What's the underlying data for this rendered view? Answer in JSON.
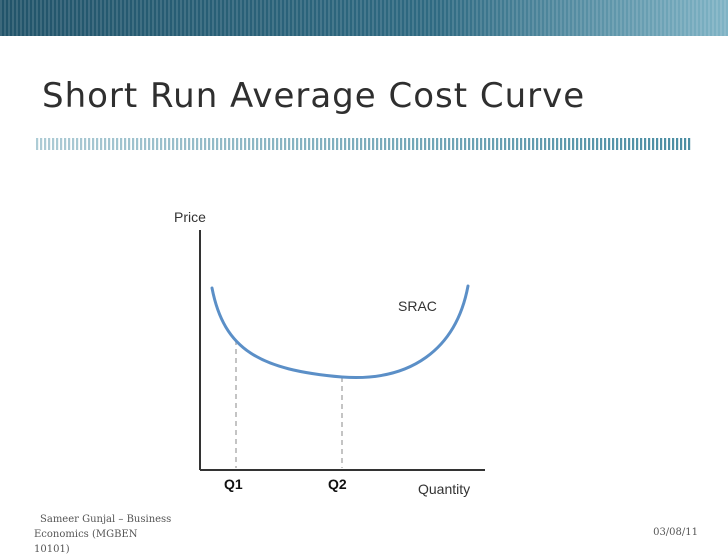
{
  "slide": {
    "title": "Short Run Average Cost Curve",
    "footer_author": "Sameer Gunjal – Business Economics (MGBEN 10101)",
    "footer_date": "03/08/11"
  },
  "diagram": {
    "y_axis_label": "Price",
    "x_axis_label": "Quantity",
    "curve_label": "SRAC",
    "q1_label": "Q1",
    "q2_label": "Q2"
  },
  "colors": {
    "top_bar_dark": "#1f4e63",
    "top_bar_light": "#5a9bb0",
    "title_rule": "#4a8da3",
    "curve": "#5b8fc7",
    "axis": "#333333",
    "dashed_line": "#b0b0b0"
  }
}
